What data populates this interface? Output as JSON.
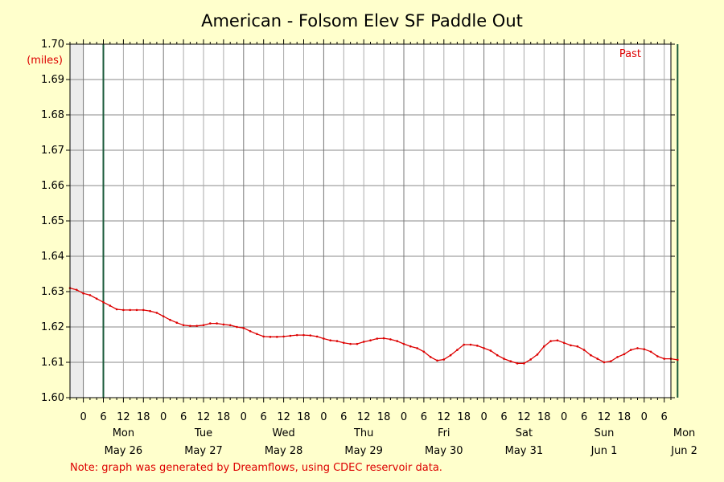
{
  "chart_data": {
    "type": "line",
    "title": "American - Folsom Elev SF Paddle Out",
    "ylabel": "(miles)",
    "ylim": [
      1.6,
      1.7
    ],
    "y_ticks": [
      "1.60",
      "1.61",
      "1.62",
      "1.63",
      "1.64",
      "1.65",
      "1.66",
      "1.67",
      "1.68",
      "1.69",
      "1.70"
    ],
    "x_start_hour": -4,
    "x_end_hour": 176,
    "hour_tick_labels": [
      "0",
      "6",
      "12",
      "18"
    ],
    "days": [
      {
        "weekday": "Mon",
        "date": "May 26"
      },
      {
        "weekday": "Tue",
        "date": "May 27"
      },
      {
        "weekday": "Wed",
        "date": "May 28"
      },
      {
        "weekday": "Thu",
        "date": "May 29"
      },
      {
        "weekday": "Fri",
        "date": "May 30"
      },
      {
        "weekday": "Sat",
        "date": "May 31"
      },
      {
        "weekday": "Sun",
        "date": "Jun 1"
      },
      {
        "weekday": "Mon",
        "date": "Jun 2"
      }
    ],
    "past_label": "Past",
    "grid": true,
    "series": [
      {
        "color": "#dd0000",
        "points": [
          [
            -4,
            1.631
          ],
          [
            -2,
            1.6305
          ],
          [
            0,
            1.6295
          ],
          [
            2,
            1.629
          ],
          [
            4,
            1.628
          ],
          [
            6,
            1.627
          ],
          [
            8,
            1.626
          ],
          [
            10,
            1.625
          ],
          [
            12,
            1.6248
          ],
          [
            14,
            1.6248
          ],
          [
            16,
            1.6248
          ],
          [
            18,
            1.6248
          ],
          [
            20,
            1.6245
          ],
          [
            22,
            1.624
          ],
          [
            24,
            1.623
          ],
          [
            26,
            1.622
          ],
          [
            28,
            1.6212
          ],
          [
            30,
            1.6205
          ],
          [
            32,
            1.6203
          ],
          [
            34,
            1.6203
          ],
          [
            36,
            1.6205
          ],
          [
            38,
            1.621
          ],
          [
            40,
            1.621
          ],
          [
            42,
            1.6207
          ],
          [
            44,
            1.6205
          ],
          [
            46,
            1.62
          ],
          [
            48,
            1.6197
          ],
          [
            50,
            1.6188
          ],
          [
            52,
            1.618
          ],
          [
            54,
            1.6173
          ],
          [
            56,
            1.6172
          ],
          [
            58,
            1.6172
          ],
          [
            60,
            1.6173
          ],
          [
            62,
            1.6175
          ],
          [
            64,
            1.6177
          ],
          [
            66,
            1.6177
          ],
          [
            68,
            1.6176
          ],
          [
            70,
            1.6173
          ],
          [
            72,
            1.6167
          ],
          [
            74,
            1.6162
          ],
          [
            76,
            1.616
          ],
          [
            78,
            1.6155
          ],
          [
            80,
            1.6152
          ],
          [
            82,
            1.6152
          ],
          [
            84,
            1.6158
          ],
          [
            86,
            1.6162
          ],
          [
            88,
            1.6167
          ],
          [
            90,
            1.6168
          ],
          [
            92,
            1.6165
          ],
          [
            94,
            1.616
          ],
          [
            96,
            1.6152
          ],
          [
            98,
            1.6145
          ],
          [
            100,
            1.614
          ],
          [
            102,
            1.613
          ],
          [
            104,
            1.6115
          ],
          [
            106,
            1.6105
          ],
          [
            108,
            1.6108
          ],
          [
            110,
            1.612
          ],
          [
            112,
            1.6135
          ],
          [
            114,
            1.615
          ],
          [
            116,
            1.615
          ],
          [
            118,
            1.6147
          ],
          [
            120,
            1.614
          ],
          [
            122,
            1.6133
          ],
          [
            124,
            1.612
          ],
          [
            126,
            1.611
          ],
          [
            128,
            1.6103
          ],
          [
            130,
            1.6097
          ],
          [
            132,
            1.6097
          ],
          [
            134,
            1.6108
          ],
          [
            136,
            1.6122
          ],
          [
            138,
            1.6145
          ],
          [
            140,
            1.616
          ],
          [
            142,
            1.6162
          ],
          [
            144,
            1.6155
          ],
          [
            146,
            1.6148
          ],
          [
            148,
            1.6145
          ],
          [
            150,
            1.6135
          ],
          [
            152,
            1.612
          ],
          [
            154,
            1.611
          ],
          [
            156,
            1.61
          ],
          [
            158,
            1.6103
          ],
          [
            160,
            1.6115
          ],
          [
            162,
            1.6123
          ],
          [
            164,
            1.6135
          ],
          [
            166,
            1.614
          ],
          [
            168,
            1.6137
          ],
          [
            170,
            1.613
          ],
          [
            172,
            1.6117
          ],
          [
            174,
            1.611
          ],
          [
            176,
            1.611
          ],
          [
            178,
            1.6107
          ]
        ]
      }
    ]
  },
  "note": "Note: graph was generated by Dreamflows, using CDEC reservoir data."
}
